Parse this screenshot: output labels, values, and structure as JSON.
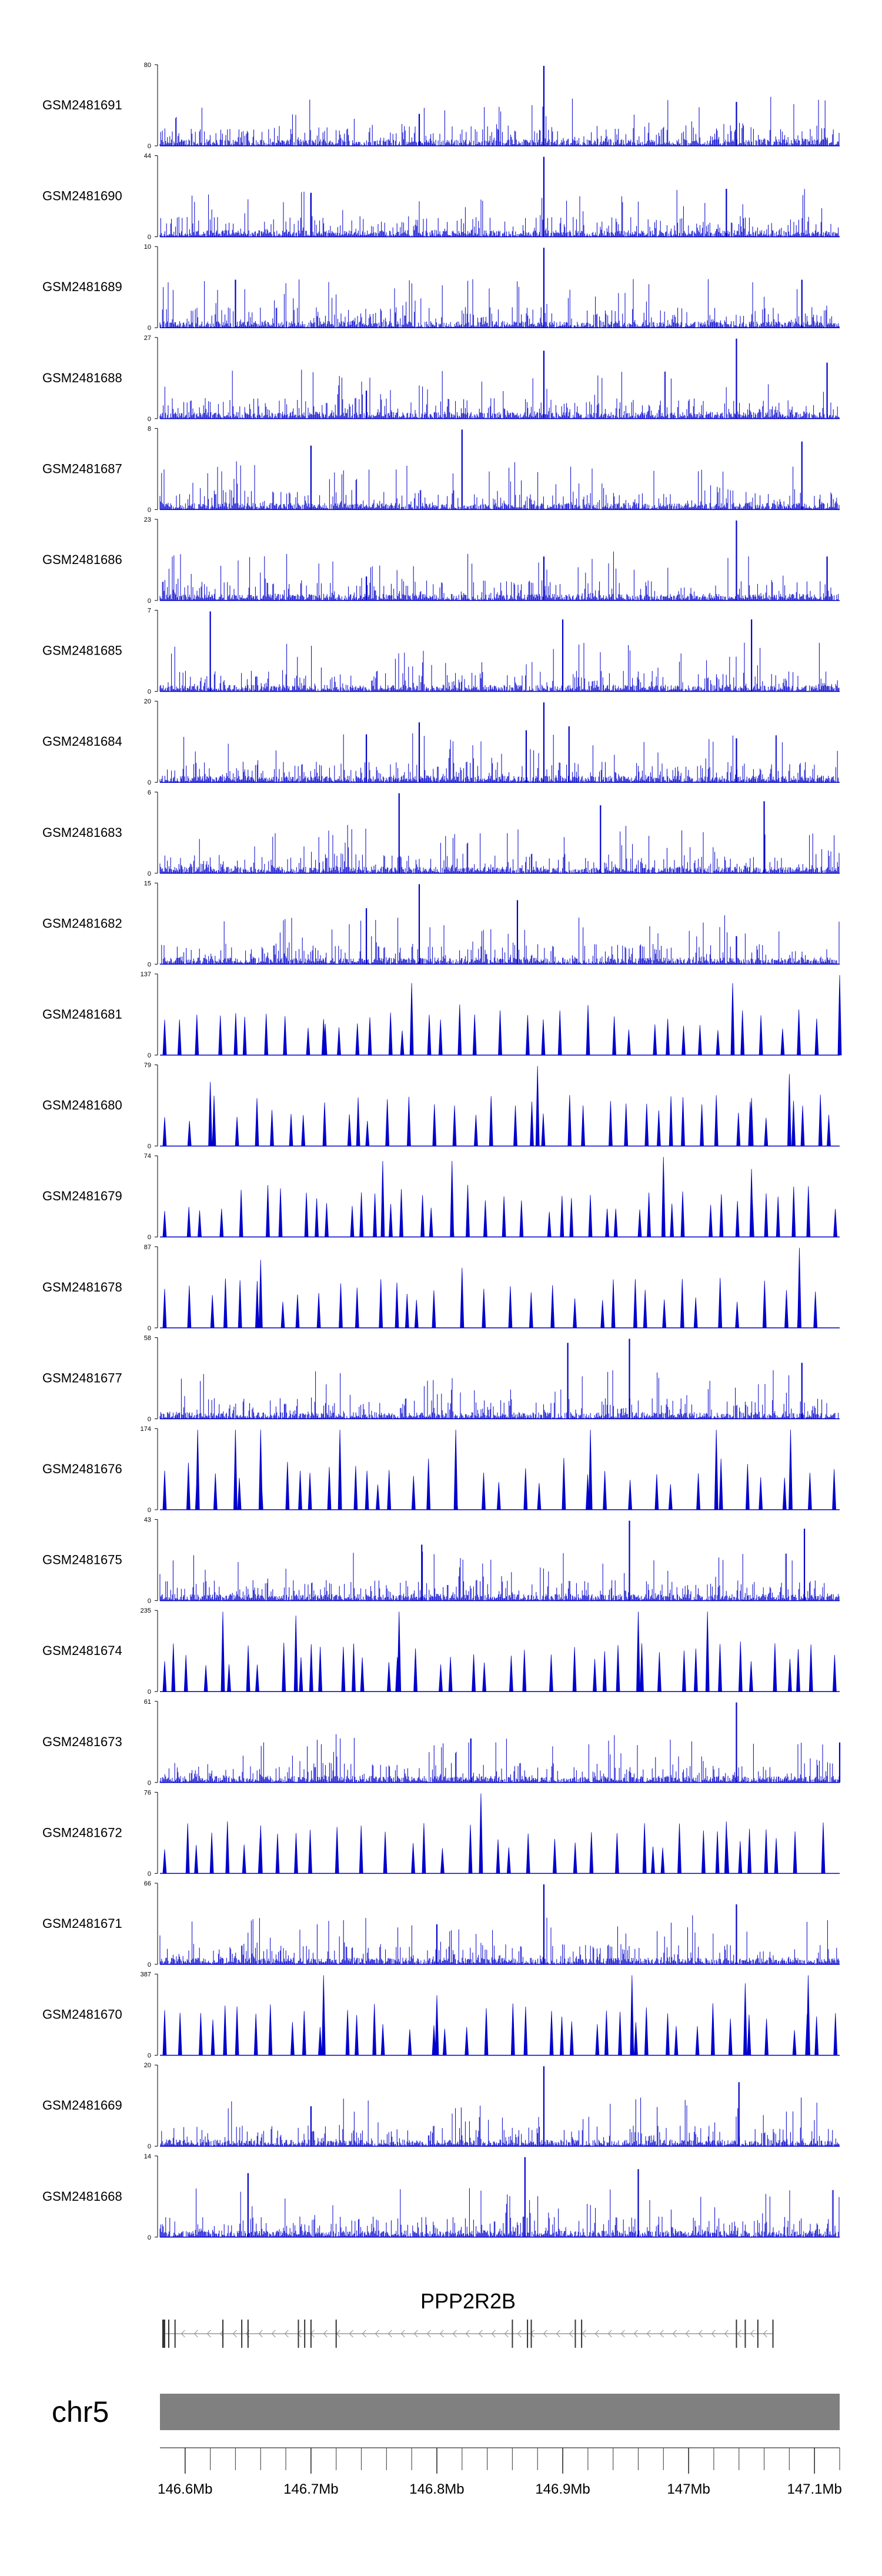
{
  "chart_data": {
    "type": "genome-track-plot",
    "title": "",
    "xlabel": "",
    "ylabel": "",
    "chromosome": "chr5",
    "gene": "PPP2R2B",
    "region_mb": [
      146.58,
      147.12
    ],
    "x_ticks": [
      {
        "value": 146.6,
        "label": "146.6Mb"
      },
      {
        "value": 146.7,
        "label": "146.7Mb"
      },
      {
        "value": 146.8,
        "label": "146.8Mb"
      },
      {
        "value": 146.9,
        "label": "146.9Mb"
      },
      {
        "value": 147.0,
        "label": "147Mb"
      },
      {
        "value": 147.1,
        "label": "147.1Mb"
      }
    ],
    "track_color": "#0000cc",
    "tracks": [
      {
        "sample": "GSM2481691",
        "ymax": 80,
        "style": "dense",
        "peaks": [
          [
            146.786,
            0.4
          ],
          [
            146.885,
            1.0
          ],
          [
            147.038,
            0.55
          ]
        ]
      },
      {
        "sample": "GSM2481690",
        "ymax": 44,
        "style": "dense",
        "peaks": [
          [
            146.885,
            1.0
          ],
          [
            146.7,
            0.55
          ],
          [
            147.03,
            0.6
          ]
        ]
      },
      {
        "sample": "GSM2481689",
        "ymax": 10,
        "style": "dense",
        "peaks": [
          [
            146.885,
            1.0
          ],
          [
            146.64,
            0.6
          ],
          [
            147.09,
            0.6
          ]
        ]
      },
      {
        "sample": "GSM2481688",
        "ymax": 27,
        "style": "dense",
        "peaks": [
          [
            146.744,
            0.35
          ],
          [
            146.885,
            0.85
          ],
          [
            147.038,
            1.0
          ],
          [
            147.11,
            0.7
          ]
        ]
      },
      {
        "sample": "GSM2481687",
        "ymax": 8,
        "style": "dense",
        "peaks": [
          [
            146.82,
            1.0
          ],
          [
            146.7,
            0.8
          ],
          [
            147.09,
            0.85
          ]
        ]
      },
      {
        "sample": "GSM2481686",
        "ymax": 23,
        "style": "dense",
        "peaks": [
          [
            146.744,
            0.3
          ],
          [
            146.885,
            0.55
          ],
          [
            147.038,
            1.0
          ],
          [
            147.11,
            0.55
          ]
        ]
      },
      {
        "sample": "GSM2481685",
        "ymax": 7,
        "style": "dense",
        "peaks": [
          [
            146.62,
            1.0
          ],
          [
            146.9,
            0.9
          ],
          [
            147.05,
            0.9
          ]
        ]
      },
      {
        "sample": "GSM2481684",
        "ymax": 20,
        "style": "dense",
        "peaks": [
          [
            146.744,
            0.6
          ],
          [
            146.786,
            0.75
          ],
          [
            146.871,
            0.65
          ],
          [
            146.885,
            1.0
          ],
          [
            146.905,
            0.7
          ],
          [
            147.038,
            0.55
          ]
        ]
      },
      {
        "sample": "GSM2481683",
        "ymax": 6,
        "style": "dense",
        "peaks": [
          [
            146.77,
            1.0
          ],
          [
            146.93,
            0.85
          ],
          [
            147.06,
            0.9
          ]
        ]
      },
      {
        "sample": "GSM2481682",
        "ymax": 15,
        "style": "dense",
        "peaks": [
          [
            146.744,
            0.7
          ],
          [
            146.786,
            1.0
          ],
          [
            146.864,
            0.8
          ],
          [
            147.038,
            0.35
          ]
        ]
      },
      {
        "sample": "GSM2481681",
        "ymax": 137,
        "style": "sparse",
        "peaks": [
          [
            146.71,
            0.45
          ],
          [
            146.78,
            0.9
          ],
          [
            146.92,
            0.45
          ],
          [
            147.035,
            0.9
          ],
          [
            147.12,
            1.0
          ]
        ]
      },
      {
        "sample": "GSM2481680",
        "ymax": 79,
        "style": "sparse",
        "peaks": [
          [
            146.62,
            0.8
          ],
          [
            146.88,
            1.0
          ],
          [
            147.08,
            0.9
          ],
          [
            147.05,
            0.6
          ]
        ]
      },
      {
        "sample": "GSM2481679",
        "ymax": 74,
        "style": "sparse",
        "peaks": [
          [
            146.757,
            0.95
          ],
          [
            146.812,
            0.95
          ],
          [
            146.98,
            1.0
          ],
          [
            147.05,
            0.85
          ]
        ]
      },
      {
        "sample": "GSM2481678",
        "ymax": 87,
        "style": "sparse",
        "peaks": [
          [
            146.66,
            0.85
          ],
          [
            146.82,
            0.75
          ],
          [
            147.088,
            1.0
          ]
        ]
      },
      {
        "sample": "GSM2481677",
        "ymax": 58,
        "style": "dense",
        "peaks": [
          [
            146.904,
            0.95
          ],
          [
            146.953,
            1.0
          ],
          [
            147.09,
            0.7
          ]
        ]
      },
      {
        "sample": "GSM2481676",
        "ymax": 174,
        "style": "sparse",
        "peaks": [
          [
            146.61,
            1.0
          ],
          [
            146.64,
            1.0
          ],
          [
            146.66,
            1.0
          ],
          [
            146.723,
            1.0
          ],
          [
            146.815,
            1.0
          ],
          [
            146.922,
            1.0
          ],
          [
            147.022,
            1.0
          ],
          [
            147.081,
            1.0
          ]
        ]
      },
      {
        "sample": "GSM2481675",
        "ymax": 43,
        "style": "dense",
        "peaks": [
          [
            146.788,
            0.7
          ],
          [
            146.953,
            1.0
          ],
          [
            147.092,
            0.9
          ]
        ]
      },
      {
        "sample": "GSM2481674",
        "ymax": 235,
        "style": "sparse",
        "peaks": [
          [
            146.63,
            1.0
          ],
          [
            146.688,
            0.95
          ],
          [
            146.77,
            1.0
          ],
          [
            146.96,
            1.0
          ],
          [
            147.015,
            1.0
          ]
        ]
      },
      {
        "sample": "GSM2481673",
        "ymax": 61,
        "style": "dense",
        "peaks": [
          [
            146.827,
            0.55
          ],
          [
            147.038,
            1.0
          ],
          [
            147.12,
            0.5
          ]
        ]
      },
      {
        "sample": "GSM2481672",
        "ymax": 76,
        "style": "sparse",
        "peaks": [
          [
            146.835,
            1.0
          ],
          [
            146.66,
            0.6
          ],
          [
            147.03,
            0.65
          ]
        ]
      },
      {
        "sample": "GSM2481671",
        "ymax": 66,
        "style": "dense",
        "peaks": [
          [
            146.885,
            1.0
          ],
          [
            146.8,
            0.5
          ],
          [
            147.038,
            0.75
          ]
        ]
      },
      {
        "sample": "GSM2481670",
        "ymax": 387,
        "style": "sparse",
        "peaks": [
          [
            146.71,
            1.0
          ],
          [
            146.955,
            1.0
          ],
          [
            147.095,
            1.0
          ],
          [
            146.8,
            0.75
          ],
          [
            147.045,
            0.9
          ]
        ]
      },
      {
        "sample": "GSM2481669",
        "ymax": 20,
        "style": "dense",
        "peaks": [
          [
            146.885,
            1.0
          ],
          [
            147.04,
            0.8
          ],
          [
            146.7,
            0.5
          ]
        ]
      },
      {
        "sample": "GSM2481668",
        "ymax": 14,
        "style": "dense",
        "peaks": [
          [
            146.87,
            1.0
          ],
          [
            146.96,
            0.85
          ],
          [
            146.65,
            0.8
          ]
        ]
      }
    ]
  }
}
